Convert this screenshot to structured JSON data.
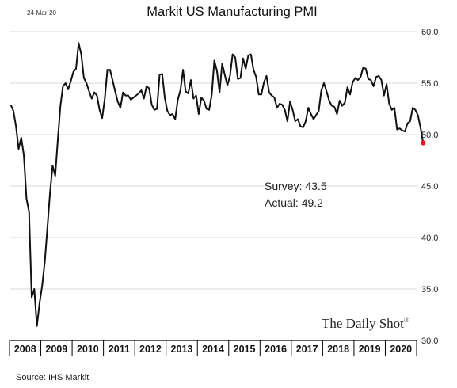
{
  "date_stamp": "24-Mar-20",
  "source": "Source: IHS Markit",
  "brand": "The Daily Shot",
  "brand_mark": "®",
  "annotations": {
    "survey": "Survey: 43.5",
    "actual": "Actual:  49.2"
  },
  "colors": {
    "line": "#111111",
    "last_point": "#e8191c",
    "grid": "#d9d9d9"
  },
  "chart_data": {
    "type": "line",
    "title": "Markit US Manufacturing PMI",
    "xlabel": "",
    "ylabel": "",
    "ylim": [
      30,
      60
    ],
    "y_ticks": [
      "30.0",
      "35.0",
      "40.0",
      "45.0",
      "50.0",
      "55.0",
      "60.0"
    ],
    "y_axis_side": "right",
    "grid": true,
    "x_start": "2008-01",
    "x_end": "2020-03",
    "x_tick_labels": [
      "2008",
      "2009",
      "2010",
      "2011",
      "2012",
      "2013",
      "2014",
      "2015",
      "2016",
      "2017",
      "2018",
      "2019",
      "2020"
    ],
    "series": [
      {
        "values": [
          52.9,
          52.3,
          50.8,
          48.6,
          49.7,
          48.0,
          43.8,
          42.5,
          34.2,
          35.0,
          31.4,
          33.6,
          35.3,
          37.6,
          40.9,
          44.3,
          47.0,
          46.0,
          49.5,
          52.8,
          54.7,
          55.0,
          54.4,
          55.2,
          56.1,
          56.4,
          58.9,
          57.8,
          55.5,
          55.0,
          54.2,
          53.5,
          54.1,
          53.8,
          52.4,
          51.6,
          53.5,
          56.3,
          56.3,
          55.3,
          54.2,
          53.2,
          52.6,
          54.1,
          53.8,
          53.8,
          53.4,
          53.6,
          53.8,
          54.0,
          54.3,
          53.5,
          54.7,
          54.5,
          52.9,
          52.4,
          52.5,
          55.8,
          55.9,
          53.6,
          52.3,
          51.9,
          52.0,
          51.5,
          53.4,
          54.3,
          56.3,
          54.2,
          54.0,
          55.3,
          53.5,
          53.8,
          52.0,
          53.6,
          53.3,
          52.5,
          52.4,
          53.9,
          57.2,
          56.2,
          54.1,
          56.9,
          55.8,
          54.8,
          55.7,
          57.8,
          57.5,
          55.4,
          55.5,
          57.4,
          56.4,
          57.7,
          57.8,
          56.3,
          55.6,
          53.9,
          53.9,
          55.1,
          55.7,
          54.1,
          53.8,
          53.6,
          52.6,
          53.0,
          52.9,
          52.4,
          51.3,
          53.2,
          52.4,
          51.3,
          51.5,
          50.8,
          50.7,
          51.3,
          52.6,
          52.0,
          51.5,
          51.9,
          52.3,
          54.3,
          55.0,
          54.2,
          53.3,
          52.8,
          52.7,
          52.0,
          53.3,
          52.8,
          53.1,
          54.6,
          53.9,
          55.1,
          55.5,
          55.3,
          55.6,
          56.5,
          56.4,
          55.4,
          55.3,
          54.7,
          55.6,
          55.7,
          55.3,
          53.8,
          54.9,
          53.0,
          52.4,
          52.6,
          50.5,
          50.6,
          50.4,
          50.3,
          51.1,
          51.3,
          52.6,
          52.4,
          51.9,
          50.7,
          49.2
        ]
      }
    ],
    "last_point_value": 49.2
  }
}
